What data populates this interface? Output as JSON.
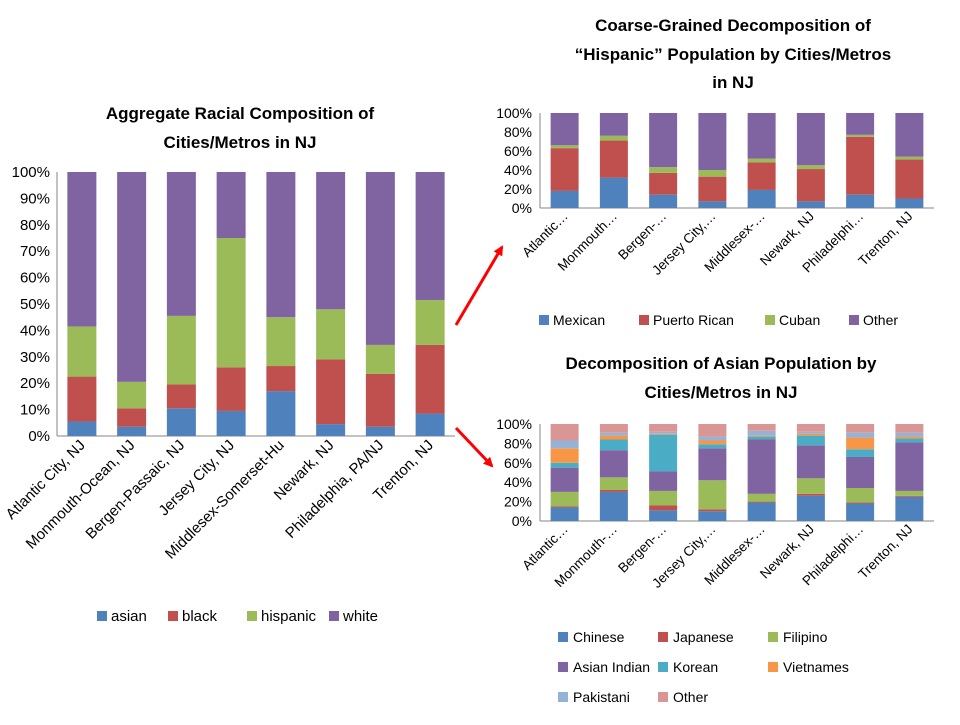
{
  "chart_data": [
    {
      "type": "bar",
      "stacked": "percent",
      "title_lines": [
        "Aggregate Racial Composition of",
        "Cities/Metros in NJ"
      ],
      "categories": [
        "Atlantic City, NJ",
        "Monmouth-Ocean, NJ",
        "Bergen-Passaic, NJ",
        "Jersey City, NJ",
        "Middlesex-Somerset-Hu",
        "Newark, NJ",
        "Philadelphia, PA/NJ",
        "Trenton, NJ"
      ],
      "y_ticks": [
        "0%",
        "10%",
        "20%",
        "30%",
        "40%",
        "50%",
        "60%",
        "70%",
        "80%",
        "90%",
        "100%"
      ],
      "ylim": [
        0,
        100
      ],
      "legend_position": "bottom",
      "series": [
        {
          "name": "asian",
          "color": "#4F81BD",
          "values": [
            5.5,
            3.5,
            10.5,
            9.5,
            17,
            4.5,
            3.5,
            8.5
          ]
        },
        {
          "name": "black",
          "color": "#C0504D",
          "values": [
            17,
            7,
            9,
            16.5,
            9.5,
            24.5,
            20,
            26
          ]
        },
        {
          "name": "hispanic",
          "color": "#9BBB59",
          "values": [
            19,
            10,
            26,
            49,
            18.5,
            19,
            11,
            17
          ]
        },
        {
          "name": "white",
          "color": "#8064A2",
          "values": [
            58.5,
            79.5,
            54.5,
            25,
            55,
            52,
            65.5,
            48.5
          ]
        }
      ]
    },
    {
      "type": "bar",
      "stacked": "percent",
      "title_lines": [
        "Coarse-Grained Decomposition of",
        "“Hispanic” Population by Cities/Metros",
        "in NJ"
      ],
      "categories": [
        "Atlantic…",
        "Monmouth…",
        "Bergen-…",
        "Jersey City,…",
        "Middlesex-…",
        "Newark, NJ",
        "Philadelphi…",
        "Trenton, NJ"
      ],
      "y_ticks": [
        "0%",
        "20%",
        "40%",
        "60%",
        "80%",
        "100%"
      ],
      "ylim": [
        0,
        100
      ],
      "legend_position": "bottom",
      "series": [
        {
          "name": "Mexican",
          "color": "#4F81BD",
          "values": [
            18,
            32,
            14,
            7,
            19,
            7,
            14,
            10
          ]
        },
        {
          "name": "Puerto Rican",
          "color": "#C0504D",
          "values": [
            45,
            39,
            23,
            26,
            29,
            34,
            61,
            41
          ]
        },
        {
          "name": "Cuban",
          "color": "#9BBB59",
          "values": [
            3,
            5,
            6,
            7,
            4,
            4,
            2,
            3
          ]
        },
        {
          "name": "Other",
          "color": "#8064A2",
          "values": [
            34,
            24,
            57,
            60,
            48,
            55,
            23,
            46
          ]
        }
      ]
    },
    {
      "type": "bar",
      "stacked": "percent",
      "title_lines": [
        "Decomposition of Asian Population by",
        "Cities/Metros in NJ"
      ],
      "categories": [
        "Atlantic…",
        "Monmouth-…",
        "Bergen-…",
        "Jersey City,…",
        "Middlesex-…",
        "Newark, NJ",
        "Philadelphi…",
        "Trenton, NJ"
      ],
      "y_ticks": [
        "0%",
        "20%",
        "40%",
        "60%",
        "80%",
        "100%"
      ],
      "ylim": [
        0,
        100
      ],
      "legend_position": "bottom",
      "series": [
        {
          "name": "Chinese",
          "color": "#4F81BD",
          "values": [
            14,
            30,
            11,
            10,
            19,
            26,
            18,
            25
          ]
        },
        {
          "name": "Japanese",
          "color": "#C0504D",
          "values": [
            1,
            2,
            5,
            2,
            1,
            2,
            1,
            1
          ]
        },
        {
          "name": "Filipino",
          "color": "#9BBB59",
          "values": [
            15,
            13,
            15,
            30,
            8,
            16,
            15,
            5
          ]
        },
        {
          "name": "Asian Indian",
          "color": "#8064A2",
          "values": [
            25,
            28,
            20,
            33,
            56,
            34,
            32,
            50
          ]
        },
        {
          "name": "Korean",
          "color": "#4BACC6",
          "values": [
            5,
            11,
            38,
            4,
            3,
            10,
            8,
            4
          ]
        },
        {
          "name": "Vietnames",
          "color": "#F79646",
          "values": [
            15,
            4,
            1,
            4,
            1,
            2,
            12,
            2
          ]
        },
        {
          "name": "Pakistani",
          "color": "#95B3D7",
          "values": [
            8,
            3,
            2,
            4,
            5,
            2,
            5,
            4
          ]
        },
        {
          "name": "Other",
          "color": "#D99694",
          "values": [
            17,
            9,
            8,
            13,
            7,
            8,
            9,
            9
          ]
        }
      ]
    }
  ]
}
